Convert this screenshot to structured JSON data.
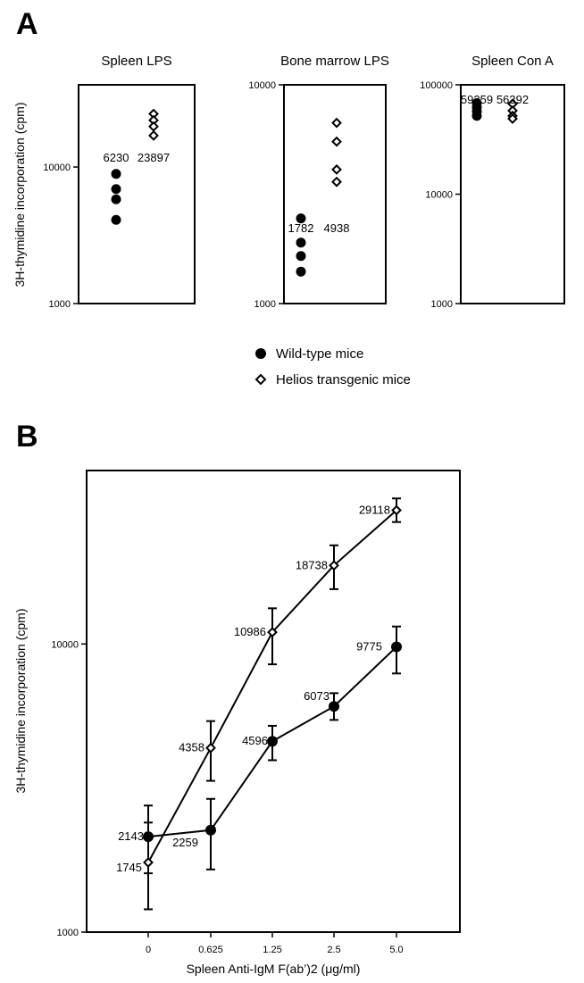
{
  "panel_labels": {
    "a": "A",
    "b": "B"
  },
  "colors": {
    "wild_type": "#000000",
    "helios": "#000000",
    "background": "#ffffff"
  },
  "chart_data": [
    {
      "type": "scatter",
      "panel": "A",
      "title": "Spleen LPS",
      "ylabel": "3H-thymidine incorporation (cpm)",
      "yscale": "log",
      "ylim": [
        1000,
        40000
      ],
      "yticks": [
        "1000",
        "10000"
      ],
      "series": [
        {
          "name": "Wild-type mice",
          "marker": "filled-circle",
          "values": [
            8900,
            6900,
            5800,
            4100
          ],
          "mean_label": "6230"
        },
        {
          "name": "Helios transgenic mice",
          "marker": "open-diamond",
          "values": [
            24500,
            22000,
            19800,
            17000
          ],
          "mean_label": "23897"
        }
      ]
    },
    {
      "type": "scatter",
      "panel": "A",
      "title": "Bone marrow LPS",
      "yscale": "log",
      "ylim": [
        1000,
        10000
      ],
      "yticks": [
        "1000",
        "10000"
      ],
      "series": [
        {
          "name": "Wild-type mice",
          "marker": "filled-circle",
          "values": [
            2450,
            1900,
            1650,
            1400
          ],
          "mean_label": "1782"
        },
        {
          "name": "Helios transgenic mice",
          "marker": "open-diamond",
          "values": [
            6700,
            5500,
            4100,
            3600
          ],
          "mean_label": "4938"
        }
      ]
    },
    {
      "type": "scatter",
      "panel": "A",
      "title": "Spleen Con A",
      "yscale": "log",
      "ylim": [
        1000,
        100000
      ],
      "yticks": [
        "1000",
        "10000",
        "100000"
      ],
      "series": [
        {
          "name": "Wild-type mice",
          "marker": "filled-circle",
          "values": [
            68000,
            62000,
            57000,
            52000
          ],
          "mean_label": "59259"
        },
        {
          "name": "Helios transgenic mice",
          "marker": "open-diamond",
          "values": [
            67000,
            58000,
            52000,
            49000
          ],
          "mean_label": "56392"
        }
      ]
    },
    {
      "type": "line",
      "panel": "B",
      "xlabel": "Spleen Anti-IgM F(ab’)2 (μg/ml)",
      "ylabel": "3H-thymidine incorporation (cpm)",
      "yscale": "log",
      "ylim": [
        1000,
        40000
      ],
      "yticks": [
        "1000",
        "10000"
      ],
      "categories": [
        "0",
        "0.625",
        "1.25",
        "2.5",
        "5.0"
      ],
      "series": [
        {
          "name": "Wild-type mice",
          "marker": "filled-circle",
          "values": [
            2143,
            2259,
            4596,
            6073,
            9775
          ],
          "error_low": [
            1600,
            1650,
            3950,
            5450,
            7900
          ],
          "error_high": [
            2750,
            2900,
            5200,
            6750,
            11500
          ],
          "labels": [
            "2143",
            "2259",
            "4596",
            "6073",
            "9775"
          ]
        },
        {
          "name": "Helios transgenic mice",
          "marker": "open-diamond",
          "values": [
            1745,
            4358,
            10986,
            18738,
            29118
          ],
          "error_low": [
            1200,
            3350,
            8500,
            15500,
            26500
          ],
          "error_high": [
            2400,
            5400,
            13300,
            22000,
            32000
          ],
          "labels": [
            "1745",
            "4358",
            "10986",
            "18738",
            "29118"
          ]
        }
      ]
    }
  ]
}
